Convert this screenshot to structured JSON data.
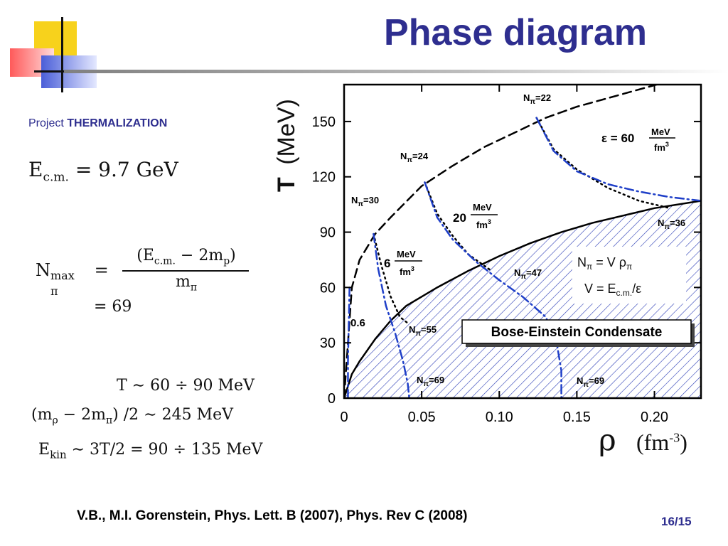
{
  "slide": {
    "title": "Phase diagram",
    "project_prefix": "Project",
    "project_name": "THERMALIZATION",
    "page": "16/15",
    "citation": "V.B., M.I. Gorenstein, Phys. Lett. B (2007), Phys. Rev C (2008)"
  },
  "equations": {
    "ecm": "E",
    "ecm_sub": "c.m.",
    "ecm_value": "=  9.7 GeV",
    "nmax_lhs": "N",
    "nmax_sup": "max",
    "nmax_sub": "π",
    "nmax_eq": "=",
    "nmax_num": "(E",
    "nmax_num_sub": "c.m.",
    "nmax_num_rest": " − 2m",
    "nmax_num_sub2": "p",
    "nmax_num_close": ")",
    "nmax_den": "m",
    "nmax_den_sub": "π",
    "nmax_result": "=  69",
    "temp_range": "T ∼  60 ÷ 90 MeV",
    "mass_diff_open": "(m",
    "mass_diff_sub1": "ρ",
    "mass_diff_mid": " − 2m",
    "mass_diff_sub2": "π",
    "mass_diff_rest": ") /2 ∼  245 MeV",
    "ekin": "E",
    "ekin_sub": "kin",
    "ekin_rest": " ∼  3T/2  =  90 ÷ 135 MeV"
  },
  "chart_data": {
    "type": "line",
    "xlabel_symbol": "ρ",
    "xlabel_unit": "(fm",
    "xlabel_unit_exp": "-3",
    "xlabel_unit_close": ")",
    "ylabel_symbol": "T",
    "ylabel_unit": "(MeV)",
    "xlim": [
      0,
      0.23
    ],
    "ylim": [
      0,
      170
    ],
    "xticks": [
      "0",
      "0.05",
      "0.10",
      "0.15",
      "0.20"
    ],
    "yticks": [
      "0",
      "30",
      "60",
      "90",
      "120",
      "150"
    ],
    "xtick_values": [
      0,
      0.05,
      0.1,
      0.15,
      0.2
    ],
    "ytick_values": [
      0,
      30,
      60,
      90,
      120,
      150
    ],
    "series": [
      {
        "style": "solid",
        "color": "#000000",
        "x": [
          0.0,
          0.005,
          0.01,
          0.02,
          0.03,
          0.04,
          0.05,
          0.06,
          0.08,
          0.1,
          0.12,
          0.14,
          0.16,
          0.18,
          0.2,
          0.23
        ],
        "y": [
          0,
          13,
          20,
          32,
          42,
          50,
          55,
          60,
          69,
          77,
          84,
          90,
          95,
          99,
          103,
          107
        ]
      },
      {
        "style": "dashed",
        "color": "#000000",
        "x": [
          0.0,
          0.005,
          0.01,
          0.02,
          0.03,
          0.05,
          0.07,
          0.09,
          0.11,
          0.13,
          0.15,
          0.18,
          0.21
        ],
        "y": [
          0,
          60,
          75,
          89,
          98,
          115,
          126,
          136,
          144,
          152,
          158,
          165,
          172
        ]
      },
      {
        "style": "dotted",
        "color": "#000000",
        "x": [
          0.019,
          0.024,
          0.03,
          0.036,
          0.042
        ],
        "y": [
          89,
          72,
          55,
          44,
          40
        ]
      },
      {
        "style": "dotted",
        "color": "#000000",
        "x": [
          0.052,
          0.06,
          0.07,
          0.08,
          0.09,
          0.095
        ],
        "y": [
          117,
          100,
          88,
          78,
          72,
          69
        ]
      },
      {
        "style": "dotted",
        "color": "#000000",
        "x": [
          0.124,
          0.135,
          0.15,
          0.17,
          0.19,
          0.21
        ],
        "y": [
          152,
          135,
          124,
          114,
          107,
          103
        ]
      },
      {
        "style": "dashdot",
        "color": "#1f3fc8",
        "x": [
          0.0035,
          0.003,
          0.0025,
          0.0025
        ],
        "y": [
          60,
          40,
          20,
          0
        ]
      },
      {
        "style": "dashdot",
        "color": "#1f3fc8",
        "x": [
          0.019,
          0.022,
          0.027,
          0.033,
          0.038,
          0.041,
          0.042
        ],
        "y": [
          89,
          70,
          50,
          35,
          20,
          8,
          0
        ]
      },
      {
        "style": "dashdot",
        "color": "#1f3fc8",
        "x": [
          0.052,
          0.06,
          0.07,
          0.085,
          0.1,
          0.115,
          0.13,
          0.137,
          0.14,
          0.14
        ],
        "y": [
          117,
          98,
          86,
          74,
          64,
          55,
          44,
          30,
          15,
          0
        ]
      },
      {
        "style": "dashdot",
        "color": "#1f3fc8",
        "x": [
          0.124,
          0.135,
          0.15,
          0.17,
          0.19,
          0.21,
          0.23
        ],
        "y": [
          152,
          134,
          123,
          116,
          112,
          109,
          107
        ]
      }
    ],
    "annotations": {
      "n22": "N",
      "n22_sub": "π",
      "n22_val": "=22",
      "n24": "N",
      "n24_sub": "π",
      "n24_val": "=24",
      "n30": "N",
      "n30_sub": "π",
      "n30_val": "=30",
      "n36": "N",
      "n36_sub": "π",
      "n36_val": "=36",
      "n47": "N",
      "n47_sub": "π",
      "n47_val": "=47",
      "n55": "N",
      "n55_sub": "π",
      "n55_val": "=55",
      "n69a": "N",
      "n69a_sub": "π",
      "n69a_val": "=69",
      "n69b": "N",
      "n69b_sub": "π",
      "n69b_val": "=69",
      "eps_prefix": "ε = 60",
      "eps_num": "MeV",
      "eps_den": "fm",
      "eps_den_exp": "3",
      "e20_prefix": "20",
      "e20_num": "MeV",
      "e20_den": "fm",
      "e20_den_exp": "3",
      "e6_prefix": "6",
      "e6_num": "MeV",
      "e6_den": "fm",
      "e6_den_exp": "3",
      "e06": "0.6",
      "relation1_lhs": "N",
      "relation1_sub": "π",
      "relation1_rhs": " =  V ρ",
      "relation1_rhs_sub": "π",
      "relation2_lhs": "V =  E",
      "relation2_sub": "c.m.",
      "relation2_rhs": "/ε",
      "bec": "Bose-Einstein Condensate"
    },
    "colors": {
      "blue": "#1f3fc8",
      "hatch": "#2a3cb5",
      "black": "#000000"
    }
  }
}
